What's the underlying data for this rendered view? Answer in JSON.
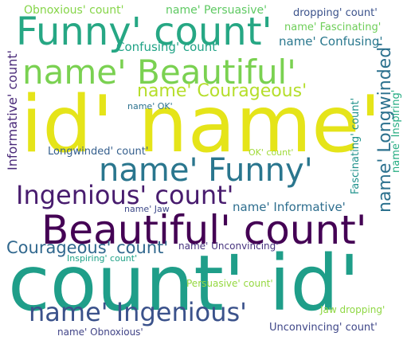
{
  "words": [
    {
      "id": "w01",
      "text": "id' name'",
      "color": "#e5e419"
    },
    {
      "id": "w02",
      "text": "count' id'",
      "color": "#1f9e89"
    },
    {
      "id": "w03",
      "text": "Beautiful' count'",
      "color": "#440154"
    },
    {
      "id": "w04",
      "text": "Funny' count'",
      "color": "#26a784"
    },
    {
      "id": "w05",
      "text": "name' Beautiful'",
      "color": "#7ad151"
    },
    {
      "id": "w06",
      "text": "name' Funny'",
      "color": "#2a768e"
    },
    {
      "id": "w07",
      "text": "Ingenious' count'",
      "color": "#481c6e"
    },
    {
      "id": "w08",
      "text": "name' Ingenious'",
      "color": "#3b528b"
    },
    {
      "id": "w09",
      "text": "name' Courageous'",
      "color": "#b5de2b"
    },
    {
      "id": "w10",
      "text": "Courageous' count'",
      "color": "#31688e"
    },
    {
      "id": "w11",
      "text": "name' Longwinded'",
      "color": "#2c718e"
    },
    {
      "id": "w12",
      "text": "Informative' count'",
      "color": "#482878"
    },
    {
      "id": "w13",
      "text": "Obnoxious' count'",
      "color": "#86d549"
    },
    {
      "id": "w14",
      "text": "name' Persuasive'",
      "color": "#5ec962"
    },
    {
      "id": "w15",
      "text": "dropping' count'",
      "color": "#3b528b"
    },
    {
      "id": "w16",
      "text": "name' Fascinating'",
      "color": "#6ece58"
    },
    {
      "id": "w17",
      "text": "name' Confusing'",
      "color": "#2a788e"
    },
    {
      "id": "w18",
      "text": "Confusing' count'",
      "color": "#20a386"
    },
    {
      "id": "w19",
      "text": "name' OK'",
      "color": "#2c728e"
    },
    {
      "id": "w20",
      "text": "Longwinded' count'",
      "color": "#355f8d"
    },
    {
      "id": "w21",
      "text": "OK' count'",
      "color": "#a0da39"
    },
    {
      "id": "w22",
      "text": "name' Jaw",
      "color": "#3e4a89"
    },
    {
      "id": "w23",
      "text": "name' Informative'",
      "color": "#2e6e8e"
    },
    {
      "id": "w24",
      "text": "name' Unconvincing'",
      "color": "#46337e"
    },
    {
      "id": "w25",
      "text": "Inspiring' count'",
      "color": "#1fa187"
    },
    {
      "id": "w26",
      "text": "Persuasive' count'",
      "color": "#95d840"
    },
    {
      "id": "w27",
      "text": "Jaw dropping'",
      "color": "#8fd744"
    },
    {
      "id": "w28",
      "text": "name' Obnoxious'",
      "color": "#414487"
    },
    {
      "id": "w29",
      "text": "Unconvincing' count'",
      "color": "#3f4788"
    },
    {
      "id": "w30",
      "text": "Fascinating' count'",
      "color": "#20928c"
    },
    {
      "id": "w31",
      "text": "name' Inspiring'",
      "color": "#25ac82"
    }
  ]
}
